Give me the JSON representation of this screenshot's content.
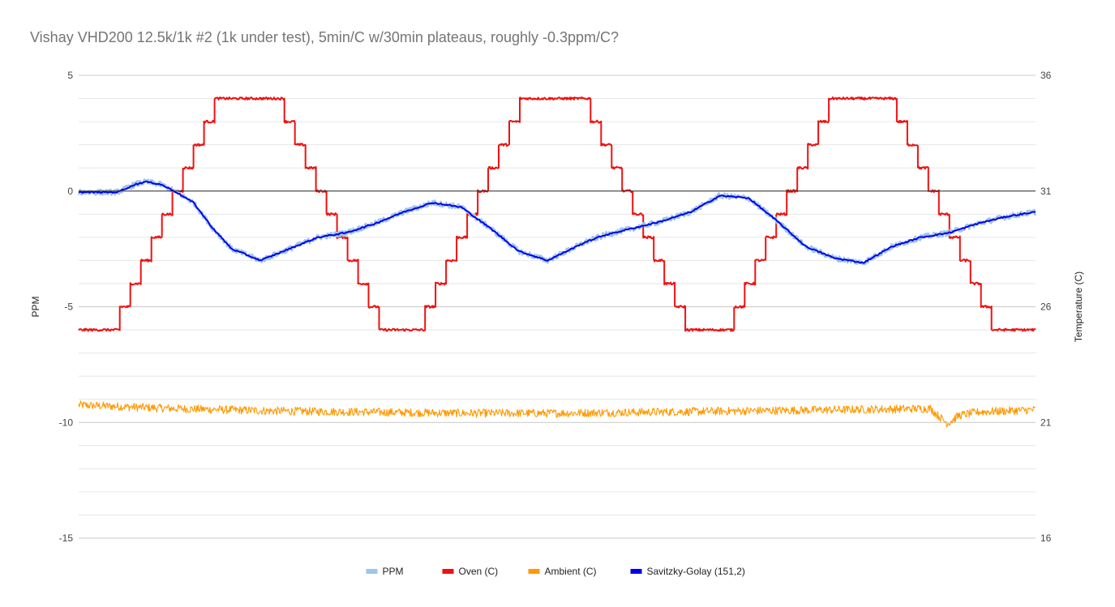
{
  "chart_data": {
    "type": "line",
    "title": "Vishay VHD200 12.5k/1k #2 (1k under test), 5min/C w/30min plateaus, roughly -0.3ppm/C?",
    "xlabel": "",
    "ylabel": "PPM",
    "y2label": "Temperature (C)",
    "ylim": [
      -15,
      5
    ],
    "y2lim": [
      16,
      36
    ],
    "yticks": [
      "5",
      "0",
      "-5",
      "-10",
      "-15"
    ],
    "y2ticks": [
      "36",
      "31",
      "26",
      "21",
      "16"
    ],
    "x_axis_labeled": false,
    "xlim": [
      0,
      100
    ],
    "grid": true,
    "legend": "bottom",
    "series": [
      {
        "name": "PPM",
        "axis": "left",
        "color": "#9fc5e8",
        "style": "noisy",
        "noise": 0.12,
        "x": [
          0,
          4,
          6,
          7,
          8.5,
          10,
          12,
          14,
          16,
          19,
          22,
          25,
          28,
          31,
          34,
          37,
          40,
          43,
          46,
          49,
          51,
          53,
          55,
          58,
          61,
          64,
          67,
          70,
          73,
          76,
          79,
          82,
          85,
          88,
          91,
          94,
          97,
          100
        ],
        "y": [
          -0.05,
          -0.05,
          0.3,
          0.4,
          0.3,
          0.0,
          -0.5,
          -1.6,
          -2.5,
          -3.0,
          -2.5,
          -2.0,
          -1.8,
          -1.4,
          -0.9,
          -0.5,
          -0.7,
          -1.6,
          -2.6,
          -3.0,
          -2.6,
          -2.2,
          -1.9,
          -1.6,
          -1.3,
          -0.9,
          -0.2,
          -0.3,
          -1.3,
          -2.4,
          -2.9,
          -3.1,
          -2.4,
          -2.0,
          -1.8,
          -1.4,
          -1.1,
          -0.9
        ]
      },
      {
        "name": "Oven (C)",
        "axis": "right",
        "color": "#ee1111",
        "style": "steps",
        "noise": 0.05,
        "x": [
          0,
          4.3,
          5.4,
          6.5,
          7.6,
          8.7,
          9.8,
          10.9,
          12.0,
          13.1,
          14.2,
          15.4,
          21.5,
          22.6,
          23.7,
          24.8,
          25.9,
          27.0,
          28.1,
          29.2,
          30.3,
          31.4,
          32.5,
          36.2,
          37.3,
          38.4,
          39.5,
          40.6,
          41.7,
          42.8,
          43.9,
          45.0,
          46.1,
          47.2,
          53.5,
          54.6,
          55.7,
          56.8,
          57.9,
          59.0,
          60.1,
          61.2,
          62.3,
          63.4,
          64.5,
          68.5,
          69.6,
          70.7,
          71.8,
          72.9,
          74.0,
          75.1,
          76.2,
          77.3,
          78.4,
          79.5,
          85.5,
          86.6,
          87.7,
          88.8,
          89.9,
          91.0,
          92.1,
          93.2,
          94.3,
          95.4,
          100
        ],
        "y": [
          25,
          26,
          27,
          28,
          29,
          30,
          31,
          32,
          33,
          34,
          35,
          35,
          34,
          33,
          32,
          31,
          30,
          29,
          28,
          27,
          26,
          25,
          25,
          26,
          27,
          28,
          29,
          30,
          31,
          32,
          33,
          34,
          35,
          35,
          34,
          33,
          32,
          31,
          30,
          29,
          28,
          27,
          26,
          25,
          25,
          26,
          27,
          28,
          29,
          30,
          31,
          32,
          33,
          34,
          35,
          35,
          34,
          33,
          32,
          31,
          30,
          29,
          28,
          27,
          26,
          25,
          25
        ]
      },
      {
        "name": "Ambient (C)",
        "axis": "right",
        "color": "#ff9900",
        "style": "noisy",
        "noise": 0.18,
        "x": [
          0,
          10,
          20,
          30,
          40,
          50,
          60,
          70,
          80,
          89,
          89.8,
          90.8,
          92,
          94,
          97,
          100
        ],
        "y": [
          21.75,
          21.6,
          21.5,
          21.45,
          21.4,
          21.4,
          21.45,
          21.5,
          21.55,
          21.6,
          21.3,
          20.95,
          21.3,
          21.45,
          21.5,
          21.55
        ]
      },
      {
        "name": "Savitzky-Golay (151,2)",
        "axis": "left",
        "color": "#0000ee",
        "style": "line",
        "noise": 0.03,
        "x": [
          0,
          4,
          6,
          7,
          8.5,
          10,
          12,
          14,
          16,
          19,
          22,
          25,
          28,
          31,
          34,
          37,
          40,
          43,
          46,
          49,
          51,
          53,
          55,
          58,
          61,
          64,
          67,
          70,
          73,
          76,
          79,
          82,
          85,
          88,
          91,
          94,
          97,
          100
        ],
        "y": [
          -0.05,
          -0.05,
          0.3,
          0.4,
          0.3,
          0.0,
          -0.5,
          -1.6,
          -2.5,
          -3.0,
          -2.5,
          -2.0,
          -1.8,
          -1.4,
          -0.9,
          -0.5,
          -0.7,
          -1.6,
          -2.6,
          -3.0,
          -2.6,
          -2.2,
          -1.9,
          -1.6,
          -1.3,
          -0.9,
          -0.2,
          -0.3,
          -1.3,
          -2.4,
          -2.9,
          -3.1,
          -2.4,
          -2.0,
          -1.8,
          -1.4,
          -1.1,
          -0.9
        ]
      }
    ]
  }
}
